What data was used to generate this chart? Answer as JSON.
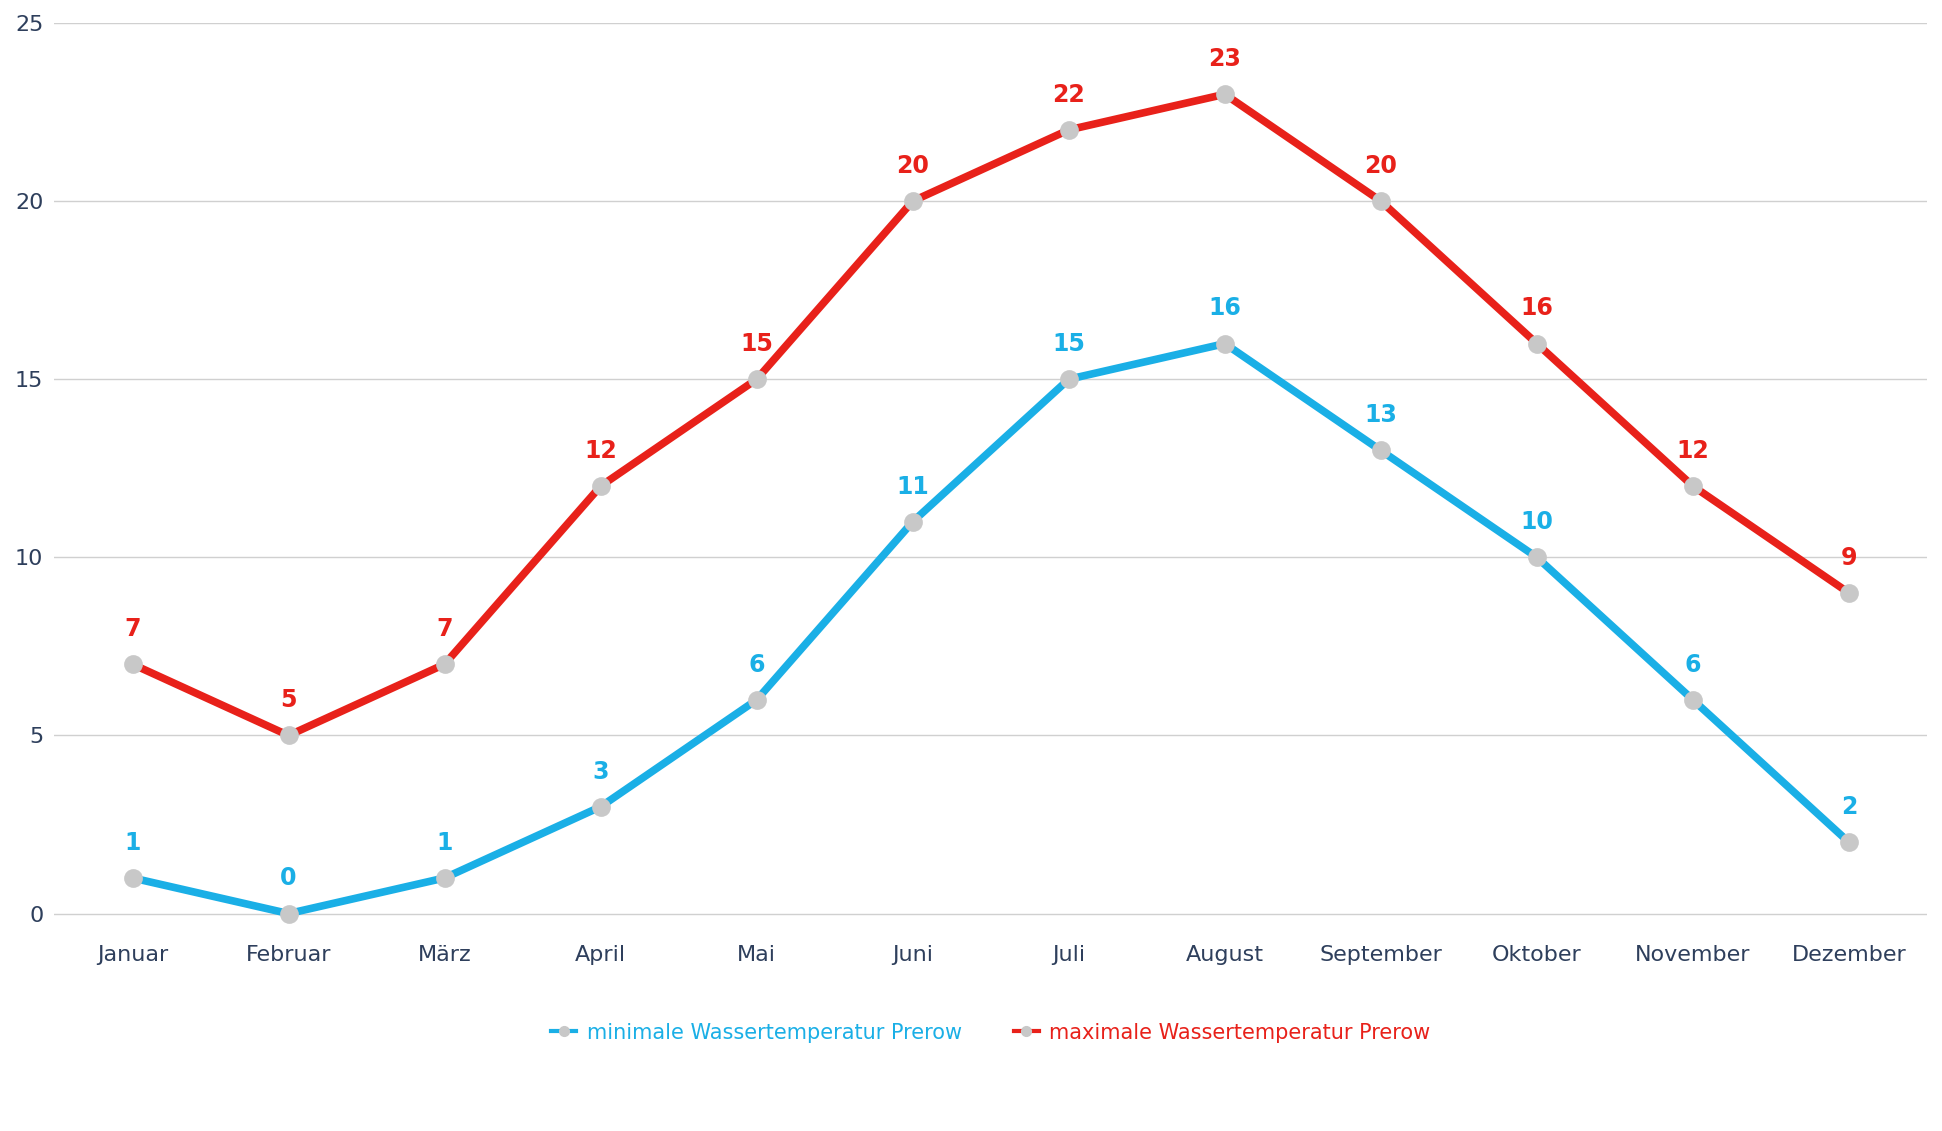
{
  "months": [
    "Januar",
    "Februar",
    "März",
    "April",
    "Mai",
    "Juni",
    "Juli",
    "August",
    "September",
    "Oktober",
    "November",
    "Dezember"
  ],
  "min_temps": [
    1,
    0,
    1,
    3,
    6,
    11,
    15,
    16,
    13,
    10,
    6,
    2
  ],
  "max_temps": [
    7,
    5,
    7,
    12,
    15,
    20,
    22,
    23,
    20,
    16,
    12,
    9
  ],
  "min_color": "#1aafe6",
  "max_color": "#e8211a",
  "min_label": "minimale Wassertemperatur Prerow",
  "max_label": "maximale Wassertemperatur Prerow",
  "ylim": [
    -0.5,
    25
  ],
  "yticks": [
    0,
    5,
    10,
    15,
    20,
    25
  ],
  "background_color": "#ffffff",
  "grid_color": "#d0d0d0",
  "line_width": 5.5,
  "marker_size": 12,
  "marker_color": "#c8c8c8",
  "annotation_fontsize": 17,
  "tick_fontsize": 16,
  "tick_color": "#2e3f5c",
  "legend_fontsize": 15
}
